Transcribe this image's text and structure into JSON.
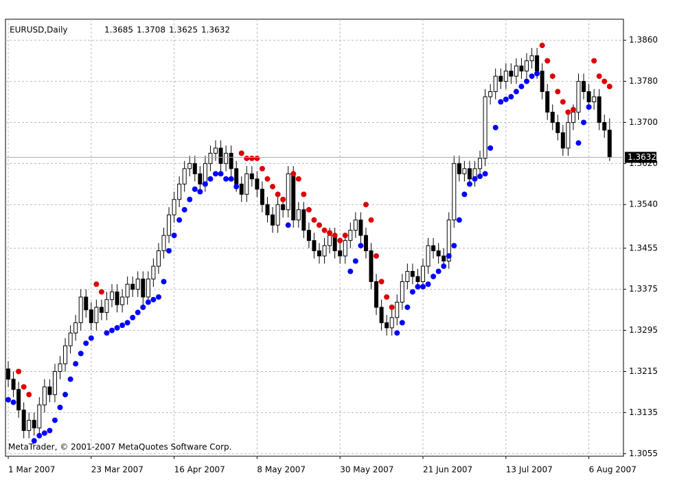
{
  "chart_data": {
    "type": "candlestick",
    "title": "EURUSD,Daily",
    "copyright": "MetaTrader, © 2001-2007 MetaQuotes Software Corp.",
    "open": [
      1.322,
      1.32,
      1.318,
      1.314,
      1.31,
      1.312,
      1.3105,
      1.315,
      1.3185,
      1.317,
      1.3215,
      1.323,
      1.3265,
      1.329,
      1.331,
      1.336,
      1.3335,
      1.331,
      1.334,
      1.333,
      1.3355,
      1.337,
      1.3345,
      1.336,
      1.3385,
      1.3375,
      1.3395,
      1.336,
      1.3395,
      1.342,
      1.345,
      1.348,
      1.352,
      1.355,
      1.358,
      1.361,
      1.362,
      1.36,
      1.358,
      1.362,
      1.364,
      1.365,
      1.362,
      1.364,
      1.361,
      1.358,
      1.356,
      1.36,
      1.359,
      1.357,
      1.354,
      1.352,
      1.35,
      1.354,
      1.353,
      1.36,
      1.351,
      1.353,
      1.349,
      1.347,
      1.345,
      1.344,
      1.346,
      1.348,
      1.345,
      1.344,
      1.347,
      1.349,
      1.351,
      1.348,
      1.345,
      1.339,
      1.334,
      1.331,
      1.33,
      1.332,
      1.335,
      1.339,
      1.341,
      1.34,
      1.339,
      1.342,
      1.346,
      1.345,
      1.344,
      1.343,
      1.351,
      1.362,
      1.36,
      1.361,
      1.359,
      1.361,
      1.363,
      1.375,
      1.376,
      1.379,
      1.378,
      1.38,
      1.379,
      1.381,
      1.38,
      1.382,
      1.383,
      1.38,
      1.376,
      1.372,
      1.37,
      1.368,
      1.365,
      1.37,
      1.372,
      1.378,
      1.376,
      1.374,
      1.375,
      1.37,
      1.3685
    ],
    "high": [
      1.3235,
      1.3215,
      1.3195,
      1.3155,
      1.3135,
      1.3135,
      1.3165,
      1.32,
      1.32,
      1.323,
      1.3245,
      1.328,
      1.3305,
      1.3325,
      1.3375,
      1.3375,
      1.335,
      1.3355,
      1.3355,
      1.337,
      1.3385,
      1.3385,
      1.3375,
      1.34,
      1.34,
      1.341,
      1.341,
      1.341,
      1.3435,
      1.3465,
      1.3495,
      1.3535,
      1.3565,
      1.3595,
      1.3625,
      1.3635,
      1.3635,
      1.3615,
      1.3635,
      1.3655,
      1.3665,
      1.3665,
      1.3655,
      1.3655,
      1.3625,
      1.3595,
      1.3615,
      1.3615,
      1.3605,
      1.3585,
      1.3555,
      1.3535,
      1.3555,
      1.3555,
      1.3615,
      1.3615,
      1.3545,
      1.3545,
      1.3505,
      1.3485,
      1.3465,
      1.3475,
      1.3495,
      1.3495,
      1.3465,
      1.3485,
      1.3505,
      1.3525,
      1.3525,
      1.3495,
      1.3465,
      1.3405,
      1.3355,
      1.3325,
      1.3335,
      1.3365,
      1.3405,
      1.3425,
      1.3425,
      1.3415,
      1.3435,
      1.3475,
      1.3475,
      1.3465,
      1.3455,
      1.3525,
      1.3635,
      1.3635,
      1.3625,
      1.3625,
      1.3625,
      1.3645,
      1.3765,
      1.3775,
      1.3805,
      1.3805,
      1.3815,
      1.3815,
      1.3825,
      1.3825,
      1.3835,
      1.3845,
      1.3845,
      1.3815,
      1.3775,
      1.3735,
      1.3715,
      1.3695,
      1.3715,
      1.3735,
      1.3795,
      1.3795,
      1.3775,
      1.3765,
      1.3765,
      1.3715,
      1.3708
    ],
    "low": [
      1.3185,
      1.3165,
      1.3125,
      1.3085,
      1.3085,
      1.309,
      1.309,
      1.3135,
      1.3155,
      1.3155,
      1.32,
      1.3215,
      1.325,
      1.3275,
      1.3295,
      1.332,
      1.3295,
      1.3295,
      1.3315,
      1.3315,
      1.334,
      1.333,
      1.333,
      1.3345,
      1.336,
      1.336,
      1.3345,
      1.3345,
      1.338,
      1.3405,
      1.3435,
      1.3465,
      1.3505,
      1.3535,
      1.3565,
      1.3595,
      1.3585,
      1.3565,
      1.3565,
      1.3605,
      1.3625,
      1.3605,
      1.3605,
      1.3595,
      1.3565,
      1.3545,
      1.3545,
      1.3575,
      1.3555,
      1.3525,
      1.3505,
      1.3485,
      1.3485,
      1.3515,
      1.3515,
      1.3495,
      1.3495,
      1.3475,
      1.3455,
      1.3435,
      1.3425,
      1.3425,
      1.3445,
      1.3435,
      1.3425,
      1.3425,
      1.3455,
      1.3475,
      1.3465,
      1.3435,
      1.3375,
      1.3325,
      1.3295,
      1.3285,
      1.3285,
      1.3305,
      1.3335,
      1.3375,
      1.3385,
      1.3375,
      1.3375,
      1.3405,
      1.3435,
      1.3425,
      1.3415,
      1.3415,
      1.3495,
      1.3585,
      1.3585,
      1.3575,
      1.3575,
      1.3595,
      1.3615,
      1.3735,
      1.3745,
      1.3765,
      1.3765,
      1.3775,
      1.3775,
      1.3785,
      1.3785,
      1.3805,
      1.3785,
      1.3745,
      1.3705,
      1.3685,
      1.3665,
      1.3635,
      1.3635,
      1.3685,
      1.3705,
      1.3745,
      1.3725,
      1.3725,
      1.3685,
      1.367,
      1.3625
    ],
    "close": [
      1.32,
      1.318,
      1.314,
      1.31,
      1.312,
      1.3105,
      1.315,
      1.3185,
      1.317,
      1.3215,
      1.323,
      1.3265,
      1.329,
      1.331,
      1.336,
      1.3335,
      1.331,
      1.334,
      1.333,
      1.3355,
      1.337,
      1.3345,
      1.336,
      1.3385,
      1.3375,
      1.3395,
      1.336,
      1.3395,
      1.342,
      1.345,
      1.348,
      1.352,
      1.355,
      1.358,
      1.361,
      1.362,
      1.36,
      1.358,
      1.362,
      1.364,
      1.365,
      1.362,
      1.364,
      1.361,
      1.358,
      1.356,
      1.36,
      1.359,
      1.357,
      1.354,
      1.352,
      1.35,
      1.354,
      1.353,
      1.36,
      1.351,
      1.353,
      1.349,
      1.347,
      1.345,
      1.344,
      1.346,
      1.348,
      1.345,
      1.344,
      1.347,
      1.349,
      1.351,
      1.348,
      1.345,
      1.339,
      1.334,
      1.331,
      1.33,
      1.332,
      1.335,
      1.339,
      1.341,
      1.34,
      1.339,
      1.342,
      1.346,
      1.345,
      1.344,
      1.343,
      1.351,
      1.362,
      1.36,
      1.361,
      1.359,
      1.361,
      1.363,
      1.375,
      1.376,
      1.379,
      1.378,
      1.38,
      1.379,
      1.381,
      1.38,
      1.382,
      1.383,
      1.38,
      1.376,
      1.372,
      1.37,
      1.368,
      1.365,
      1.37,
      1.372,
      1.378,
      1.376,
      1.374,
      1.375,
      1.37,
      1.3685,
      1.3632
    ],
    "sar": {
      "values": [
        1.316,
        1.3155,
        1.3215,
        1.3185,
        1.317,
        1.308,
        1.309,
        1.3095,
        1.31,
        1.312,
        1.3145,
        1.317,
        1.32,
        1.323,
        1.325,
        1.327,
        1.328,
        1.3385,
        1.337,
        1.329,
        1.3295,
        1.33,
        1.3305,
        1.331,
        1.332,
        1.333,
        1.334,
        1.335,
        1.3355,
        1.336,
        1.339,
        1.345,
        1.348,
        1.351,
        1.353,
        1.355,
        1.357,
        1.3565,
        1.358,
        1.359,
        1.36,
        1.36,
        1.359,
        1.359,
        1.3575,
        1.364,
        1.363,
        1.363,
        1.363,
        1.361,
        1.359,
        1.3575,
        1.356,
        1.355,
        1.35,
        1.36,
        1.359,
        1.356,
        1.353,
        1.351,
        1.35,
        1.349,
        1.3485,
        1.348,
        1.347,
        1.348,
        1.341,
        1.343,
        1.346,
        1.354,
        1.351,
        1.344,
        1.339,
        1.336,
        1.334,
        1.329,
        1.331,
        1.334,
        1.337,
        1.338,
        1.338,
        1.3385,
        1.34,
        1.341,
        1.342,
        1.344,
        1.346,
        1.351,
        1.356,
        1.358,
        1.359,
        1.3595,
        1.36,
        1.365,
        1.369,
        1.374,
        1.3745,
        1.375,
        1.376,
        1.377,
        1.378,
        1.379,
        1.3795,
        1.385,
        1.382,
        1.379,
        1.376,
        1.374,
        1.372,
        1.3725,
        1.366,
        1.37,
        1.373,
        1.382,
        1.379,
        1.378,
        1.377
      ],
      "up_color": "#0000ff",
      "down_color": "#dd0000"
    },
    "up_color": "#ffffff",
    "down_color": "#000000",
    "xticks": [
      {
        "value": 0,
        "label": "1 Mar 2007"
      },
      {
        "value": 16,
        "label": "23 Mar 2007"
      },
      {
        "value": 32,
        "label": "16 Apr 2007"
      },
      {
        "value": 48,
        "label": "8 May 2007"
      },
      {
        "value": 64,
        "label": "30 May 2007"
      },
      {
        "value": 80,
        "label": "21 Jun 2007"
      },
      {
        "value": 96,
        "label": "13 Jul 2007"
      },
      {
        "value": 112,
        "label": "6 Aug 2007"
      }
    ],
    "ylim": [
      1.305,
      1.3901
    ],
    "yticks": [
      1.3055,
      1.3135,
      1.3215,
      1.3295,
      1.3375,
      1.3455,
      {
        "value": 1.354,
        "label": "1.3540"
      },
      {
        "value": 1.362,
        "label": "1.3620"
      },
      {
        "value": 1.37,
        "label": "1.3700"
      },
      {
        "value": 1.378,
        "label": "1.3780"
      },
      {
        "value": 1.386,
        "label": "1.3860"
      }
    ],
    "grid": true
  }
}
